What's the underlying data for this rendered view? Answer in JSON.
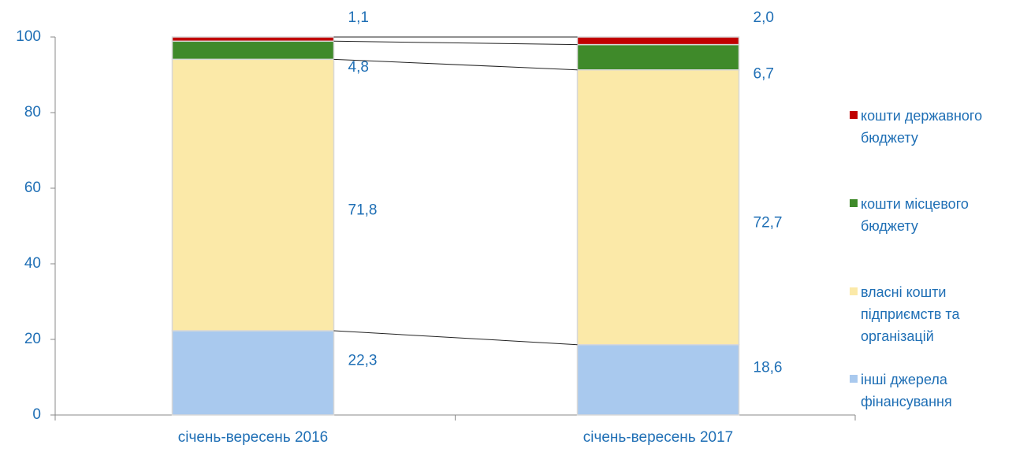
{
  "chart_data": {
    "type": "bar",
    "stacked": true,
    "categories": [
      "січень-вересень 2016",
      "січень-вересень 2017"
    ],
    "series": [
      {
        "name": "інші джерела фінансування",
        "color": "#a9c9ee",
        "values": [
          22.3,
          18.6
        ],
        "value_labels": [
          "22,3",
          "18,6"
        ]
      },
      {
        "name": "власні кошти підприємств та організацій",
        "color": "#fbe9a8",
        "values": [
          71.8,
          72.7
        ],
        "value_labels": [
          "71,8",
          "72,7"
        ]
      },
      {
        "name": "кошти місцевого бюджету",
        "color": "#3f8a2a",
        "values": [
          4.8,
          6.7
        ],
        "value_labels": [
          "4,8",
          "6,7"
        ]
      },
      {
        "name": "кошти державного бюджету",
        "color": "#c00000",
        "values": [
          1.1,
          2.0
        ],
        "value_labels": [
          "1,1",
          "2,0"
        ]
      }
    ],
    "ylim": [
      0,
      100
    ],
    "yticks": [
      0,
      20,
      40,
      60,
      80,
      100
    ],
    "legend": "right",
    "connector_lines": true
  }
}
